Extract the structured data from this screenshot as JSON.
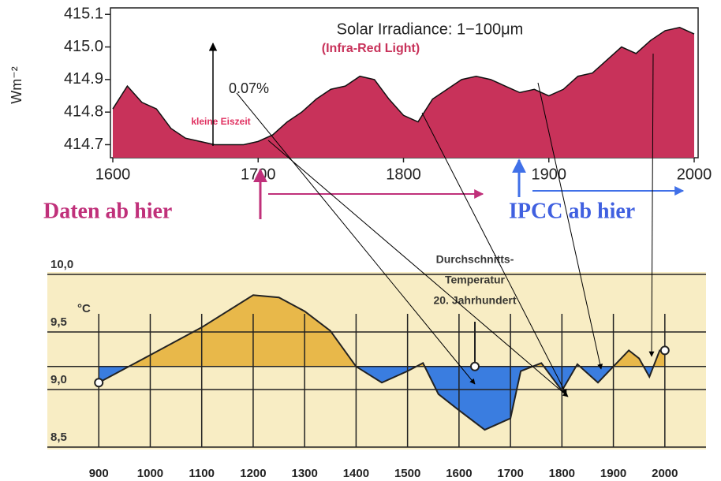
{
  "chart_data": [
    {
      "type": "area",
      "title": "Solar Irradiance: 1−100μm",
      "subtitle": "(Infra-Red Light)",
      "y_label": "Wm⁻²",
      "annotations": [
        "kleine Eiszeit",
        "0.07%",
        "Daten ab hier",
        "IPCC ab hier"
      ],
      "color": "#c8325a",
      "x": [
        1600,
        1610,
        1620,
        1630,
        1640,
        1650,
        1660,
        1670,
        1680,
        1690,
        1700,
        1710,
        1720,
        1730,
        1740,
        1750,
        1760,
        1770,
        1780,
        1790,
        1800,
        1810,
        1820,
        1830,
        1840,
        1850,
        1860,
        1870,
        1880,
        1890,
        1900,
        1910,
        1920,
        1930,
        1940,
        1950,
        1960,
        1970,
        1980,
        1990,
        2000
      ],
      "values": [
        414.81,
        414.88,
        414.83,
        414.81,
        414.75,
        414.72,
        414.71,
        414.7,
        414.7,
        414.7,
        414.71,
        414.73,
        414.77,
        414.8,
        414.84,
        414.87,
        414.88,
        414.91,
        414.9,
        414.84,
        414.79,
        414.77,
        414.84,
        414.87,
        414.9,
        414.91,
        414.9,
        414.88,
        414.86,
        414.87,
        414.85,
        414.87,
        414.91,
        414.92,
        414.96,
        415.0,
        414.98,
        415.02,
        415.05,
        415.06,
        415.04
      ],
      "xlim": [
        1600,
        2000
      ],
      "xticks": [
        1600,
        1700,
        1800,
        1900,
        2000
      ],
      "ylim": [
        414.66,
        415.12
      ],
      "yticks": [
        414.7,
        414.8,
        414.9,
        {
          "value": 415.0,
          "label": "415.0"
        },
        415.1
      ]
    },
    {
      "type": "area",
      "y_label": "°C",
      "reference_label": [
        "Durchschnitts-",
        "Temperatur",
        "20. Jahrhundert"
      ],
      "baseline": 9.2,
      "color_above": "#e8b84a",
      "color_below": "#3a7de0",
      "x": [
        900,
        1000,
        1100,
        1200,
        1250,
        1300,
        1350,
        1400,
        1450,
        1500,
        1530,
        1560,
        1600,
        1650,
        1700,
        1720,
        1760,
        1800,
        1830,
        1870,
        1900,
        1930,
        1950,
        1970,
        1990,
        2000
      ],
      "values": [
        9.06,
        9.3,
        9.54,
        9.82,
        9.8,
        9.68,
        9.51,
        9.2,
        9.06,
        9.16,
        9.23,
        8.96,
        8.82,
        8.65,
        8.75,
        9.16,
        9.23,
        8.99,
        9.22,
        9.06,
        9.2,
        9.34,
        9.27,
        9.11,
        9.34,
        9.34
      ],
      "xlim": [
        800,
        2080
      ],
      "xticks": [
        900,
        1000,
        1100,
        1200,
        1300,
        1400,
        1500,
        1600,
        1700,
        1800,
        1900,
        2000
      ],
      "ylim": [
        8.5,
        10.0
      ],
      "yticks": [
        {
          "value": 8.5,
          "label": "8,5"
        },
        {
          "value": 9.0,
          "label": "9,0"
        },
        {
          "value": 9.5,
          "label": "9,5"
        },
        {
          "value": 10.0,
          "label": "10,0"
        }
      ]
    }
  ]
}
